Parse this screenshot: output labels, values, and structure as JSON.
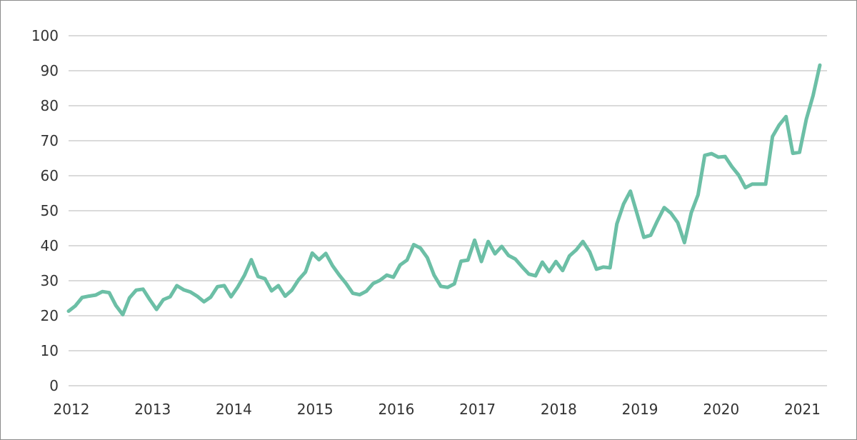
{
  "chart_data": {
    "type": "line",
    "title": "",
    "xlabel": "",
    "ylabel": "",
    "x_range": [
      2012,
      2021.25
    ],
    "ylim": [
      0,
      100
    ],
    "y_ticks": [
      0,
      10,
      20,
      30,
      40,
      50,
      60,
      70,
      80,
      90,
      100
    ],
    "x_ticks": [
      2012,
      2013,
      2014,
      2015,
      2016,
      2017,
      2018,
      2019,
      2020,
      2021
    ],
    "x_tick_labels": [
      "2012",
      "2013",
      "2014",
      "2015",
      "2016",
      "2017",
      "2018",
      "2019",
      "2020",
      "2021"
    ],
    "grid": true,
    "legend": "none",
    "color": "#6cbfa6",
    "series": [
      {
        "x": [
          2012.0,
          2012.083,
          2012.167,
          2012.25,
          2012.333,
          2012.417,
          2012.5,
          2012.583,
          2012.667,
          2012.75,
          2012.833,
          2012.917,
          2013.0,
          2013.083,
          2013.167,
          2013.25,
          2013.333,
          2013.417,
          2013.5,
          2013.583,
          2013.667,
          2013.75,
          2013.833,
          2013.917,
          2014.0,
          2014.083,
          2014.167,
          2014.25,
          2014.333,
          2014.417,
          2014.5,
          2014.583,
          2014.667,
          2014.75,
          2014.833,
          2014.917,
          2015.0,
          2015.083,
          2015.167,
          2015.25,
          2015.333,
          2015.417,
          2015.5,
          2015.583,
          2015.667,
          2015.75,
          2015.833,
          2015.917,
          2016.0,
          2016.083,
          2016.167,
          2016.25,
          2016.333,
          2016.417,
          2016.5,
          2016.583,
          2016.667,
          2016.75,
          2016.833,
          2016.917,
          2017.0,
          2017.083,
          2017.167,
          2017.25,
          2017.333,
          2017.417,
          2017.5,
          2017.583,
          2017.667,
          2017.75,
          2017.833,
          2017.917,
          2018.0,
          2018.083,
          2018.167,
          2018.25,
          2018.333,
          2018.417,
          2018.5,
          2018.583,
          2018.667,
          2018.75,
          2018.833,
          2018.917,
          2019.0,
          2019.083,
          2019.167,
          2019.25,
          2019.333,
          2019.417,
          2019.5,
          2019.583,
          2019.667,
          2019.75,
          2019.833,
          2019.917,
          2020.0,
          2020.083,
          2020.167,
          2020.25,
          2020.333,
          2020.417,
          2020.5,
          2020.583,
          2020.667,
          2020.75,
          2020.833,
          2020.917,
          2021.0,
          2021.083,
          2021.167,
          2021.25
        ],
        "values": [
          21.3,
          22.8,
          25.2,
          25.6,
          25.9,
          26.9,
          26.6,
          22.9,
          20.3,
          25.1,
          27.3,
          27.6,
          24.6,
          21.8,
          24.6,
          25.4,
          28.6,
          27.4,
          26.8,
          25.6,
          24.0,
          25.3,
          28.3,
          28.6,
          25.4,
          28.2,
          31.6,
          36.0,
          31.2,
          30.6,
          27.1,
          28.6,
          25.6,
          27.3,
          30.3,
          32.5,
          37.9,
          36.0,
          37.8,
          34.3,
          31.6,
          29.2,
          26.4,
          26.0,
          27.0,
          29.2,
          30.1,
          31.6,
          31.0,
          34.5,
          35.9,
          40.3,
          39.3,
          36.6,
          31.6,
          28.4,
          28.1,
          29.1,
          35.6,
          35.9,
          41.6,
          35.5,
          41.2,
          37.7,
          39.8,
          37.2,
          36.2,
          34.0,
          31.9,
          31.4,
          35.3,
          32.6,
          35.5,
          32.9,
          37.1,
          38.8,
          41.2,
          38.2,
          33.3,
          33.9,
          33.7,
          46.2,
          51.9,
          55.6,
          49.1,
          42.4,
          43.0,
          47.1,
          50.9,
          49.3,
          46.6,
          40.9,
          49.4,
          54.5,
          65.8,
          66.3,
          65.3,
          65.5,
          62.6,
          60.2,
          56.6,
          57.6,
          57.6,
          57.6,
          71.2,
          74.5,
          76.9,
          66.4,
          66.7,
          76.1,
          82.9,
          91.6
        ]
      }
    ]
  }
}
